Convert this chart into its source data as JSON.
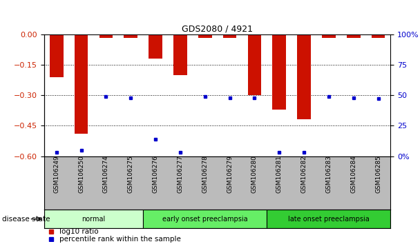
{
  "title": "GDS2080 / 4921",
  "samples": [
    "GSM106249",
    "GSM106250",
    "GSM106274",
    "GSM106275",
    "GSM106276",
    "GSM106277",
    "GSM106278",
    "GSM106279",
    "GSM106280",
    "GSM106281",
    "GSM106282",
    "GSM106283",
    "GSM106284",
    "GSM106285"
  ],
  "log10_ratio": [
    -0.21,
    -0.49,
    -0.02,
    -0.02,
    -0.12,
    -0.2,
    -0.02,
    -0.02,
    -0.3,
    -0.37,
    -0.42,
    -0.02,
    -0.02,
    -0.02
  ],
  "percentile_rank": [
    3,
    5,
    49,
    48,
    14,
    3,
    49,
    48,
    48,
    3,
    3,
    49,
    48,
    47
  ],
  "ylim_left": [
    -0.6,
    0.0
  ],
  "ylim_right": [
    0,
    100
  ],
  "yticks_left": [
    0,
    -0.15,
    -0.3,
    -0.45,
    -0.6
  ],
  "yticks_right": [
    100,
    75,
    50,
    25,
    0
  ],
  "groups": [
    {
      "label": "normal",
      "start": 0,
      "end": 3,
      "color": "#ccffcc"
    },
    {
      "label": "early onset preeclampsia",
      "start": 4,
      "end": 8,
      "color": "#66ee66"
    },
    {
      "label": "late onset preeclampsia",
      "start": 9,
      "end": 13,
      "color": "#33cc33"
    }
  ],
  "bar_color": "#cc1100",
  "dot_color": "#0000cc",
  "bg_color": "#ffffff",
  "tick_label_color_left": "#cc2200",
  "tick_label_color_right": "#0000cc",
  "xlabel_bg": "#bbbbbb",
  "legend_red": "log10 ratio",
  "legend_blue": "percentile rank within the sample",
  "disease_state_label": "disease state"
}
